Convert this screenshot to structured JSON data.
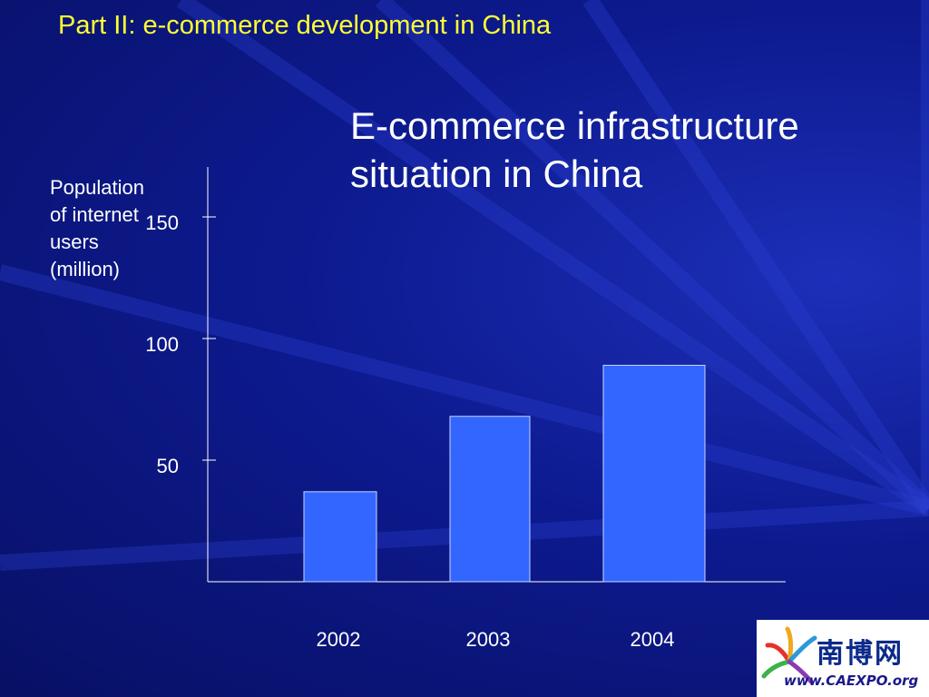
{
  "header": {
    "text": "Part II: e-commerce development in China"
  },
  "slide": {
    "title_line1": "E-commerce infrastructure",
    "title_line2": "situation in China"
  },
  "chart_data": {
    "type": "bar",
    "categories": [
      "2002",
      "2003",
      "2004"
    ],
    "values": [
      37,
      68,
      89
    ],
    "title": "",
    "xlabel": "",
    "ylabel_lines": [
      "Population",
      "of internet",
      "users",
      "(million)"
    ],
    "yticks": [
      50,
      100,
      150
    ],
    "ylim": [
      0,
      180
    ],
    "grid": false,
    "colors": {
      "bar": "#3366ff",
      "bar_stroke": "#c8d4ff",
      "axis": "#ffffff"
    }
  },
  "logo": {
    "name": "南博网",
    "url": "www.CAEXPO.org"
  }
}
